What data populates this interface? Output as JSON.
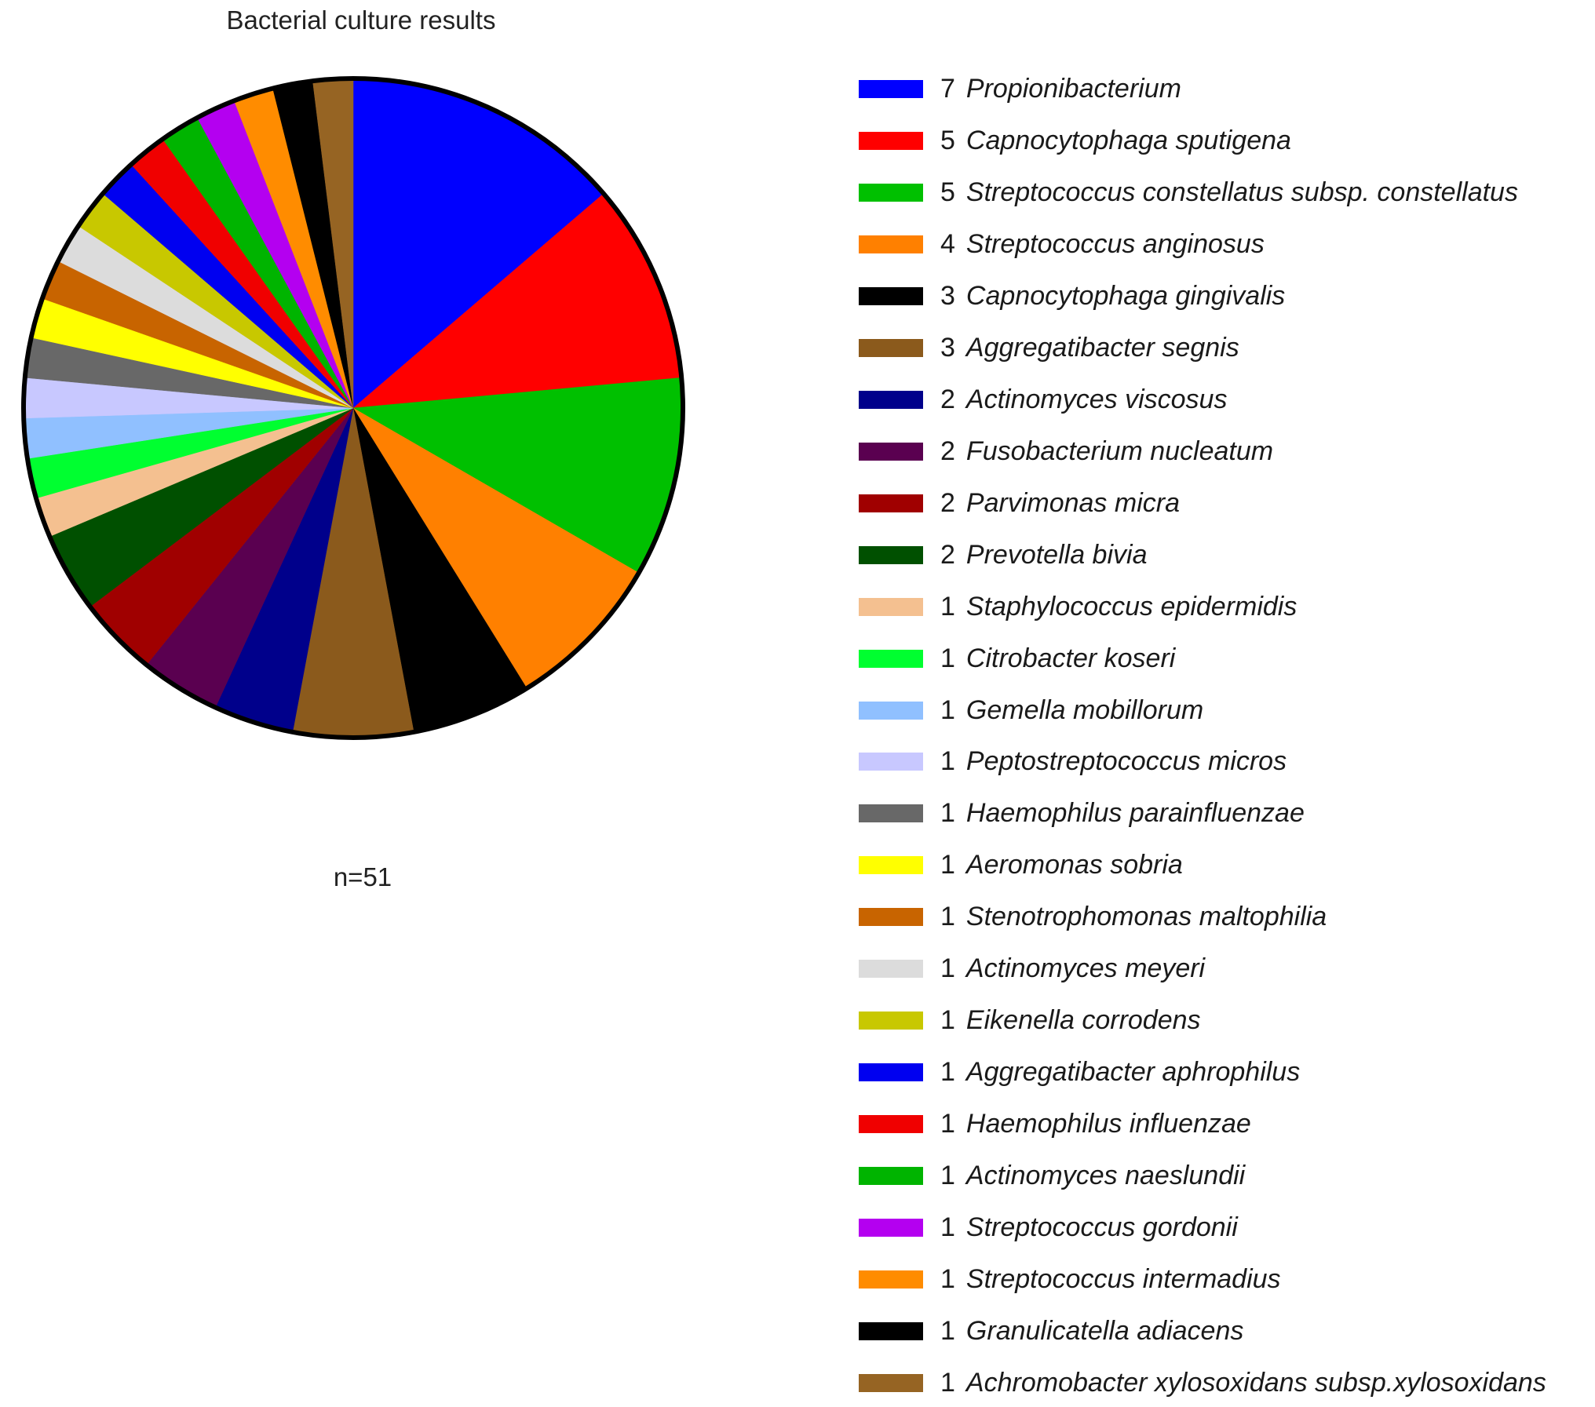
{
  "chart_data": {
    "type": "pie",
    "title": "Bacterial culture results",
    "annotation": "n=51",
    "total": 51,
    "start": "top",
    "direction": "clockwise",
    "categories": [
      "Propionibacterium",
      "Capnocytophaga sputigena",
      "Streptococcus constellatus subsp. constellatus",
      "Streptococcus anginosus",
      "Capnocytophaga gingivalis",
      "Aggregatibacter segnis",
      "Actinomyces viscosus",
      "Fusobacterium nucleatum",
      "Parvimonas micra",
      "Prevotella bivia",
      "Staphylococcus epidermidis",
      "Citrobacter koseri",
      "Gemella mobillorum",
      "Peptostreptococcus micros",
      "Haemophilus parainfluenzae",
      "Aeromonas sobria",
      "Stenotrophomonas maltophilia",
      "Actinomyces meyeri",
      "Eikenella corrodens",
      "Aggregatibacter aphrophilus",
      "Haemophilus influenzae",
      "Actinomyces naeslundii",
      "Streptococcus gordonii",
      "Streptococcus intermadius",
      "Granulicatella adiacens",
      "Achromobacter xylosoxidans subsp.xylosoxidans"
    ],
    "values": [
      7,
      5,
      5,
      4,
      3,
      3,
      2,
      2,
      2,
      2,
      1,
      1,
      1,
      1,
      1,
      1,
      1,
      1,
      1,
      1,
      1,
      1,
      1,
      1,
      1,
      1
    ],
    "colors": [
      "#0000ff",
      "#ff0000",
      "#00c000",
      "#ff8000",
      "#000000",
      "#8b5a1c",
      "#00008b",
      "#5a0050",
      "#a00000",
      "#005000",
      "#f4c090",
      "#00ff30",
      "#90c0ff",
      "#c8c8ff",
      "#686868",
      "#ffff00",
      "#c86400",
      "#dcdcdc",
      "#c8c800",
      "#0000f0",
      "#f00000",
      "#00b400",
      "#b400f0",
      "#ff8c00",
      "#000000",
      "#966423"
    ]
  },
  "legend": {
    "items": [
      {
        "count": "7",
        "name": "Propionibacterium"
      },
      {
        "count": "5",
        "name": "Capnocytophaga sputigena"
      },
      {
        "count": "5",
        "name": "Streptococcus constellatus subsp. constellatus"
      },
      {
        "count": "4",
        "name": "Streptococcus anginosus"
      },
      {
        "count": "3",
        "name": "Capnocytophaga gingivalis"
      },
      {
        "count": "3",
        "name": "Aggregatibacter segnis"
      },
      {
        "count": "2",
        "name": "Actinomyces viscosus"
      },
      {
        "count": "2",
        "name": "Fusobacterium nucleatum"
      },
      {
        "count": "2",
        "name": "Parvimonas micra"
      },
      {
        "count": "2",
        "name": "Prevotella bivia"
      },
      {
        "count": "1",
        "name": "Staphylococcus epidermidis"
      },
      {
        "count": "1",
        "name": "Citrobacter koseri"
      },
      {
        "count": "1",
        "name": "Gemella mobillorum"
      },
      {
        "count": "1",
        "name": "Peptostreptococcus micros"
      },
      {
        "count": "1",
        "name": "Haemophilus parainfluenzae"
      },
      {
        "count": "1",
        "name": "Aeromonas sobria"
      },
      {
        "count": "1",
        "name": "Stenotrophomonas maltophilia"
      },
      {
        "count": "1",
        "name": "Actinomyces meyeri"
      },
      {
        "count": "1",
        "name": "Eikenella corrodens"
      },
      {
        "count": "1",
        "name": "Aggregatibacter aphrophilus"
      },
      {
        "count": "1",
        "name": "Haemophilus influenzae"
      },
      {
        "count": "1",
        "name": "Actinomyces naeslundii"
      },
      {
        "count": "1",
        "name": "Streptococcus gordonii"
      },
      {
        "count": "1",
        "name": "Streptococcus intermadius"
      },
      {
        "count": "1",
        "name": "Granulicatella adiacens"
      },
      {
        "count": "1",
        "name": "Achromobacter xylosoxidans subsp.xylosoxidans"
      }
    ]
  }
}
